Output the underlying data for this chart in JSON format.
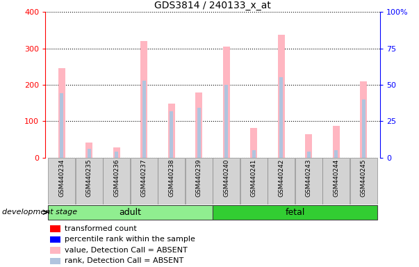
{
  "title": "GDS3814 / 240133_x_at",
  "samples": [
    "GSM440234",
    "GSM440235",
    "GSM440236",
    "GSM440237",
    "GSM440238",
    "GSM440239",
    "GSM440240",
    "GSM440241",
    "GSM440242",
    "GSM440243",
    "GSM440244",
    "GSM440245"
  ],
  "value_absent": [
    245,
    42,
    28,
    320,
    148,
    178,
    305,
    82,
    338,
    65,
    88,
    210
  ],
  "rank_absent": [
    44,
    6,
    4,
    53,
    32,
    34,
    50,
    5,
    55,
    4,
    5,
    40
  ],
  "groups": [
    "adult",
    "adult",
    "adult",
    "adult",
    "adult",
    "adult",
    "fetal",
    "fetal",
    "fetal",
    "fetal",
    "fetal",
    "fetal"
  ],
  "adult_color": "#90EE90",
  "fetal_color": "#32CD32",
  "ylim_left": [
    0,
    400
  ],
  "ylim_right": [
    0,
    100
  ],
  "yticks_left": [
    0,
    100,
    200,
    300,
    400
  ],
  "yticks_right": [
    0,
    25,
    50,
    75,
    100
  ],
  "bar_color_absent_value": "#FFB6C1",
  "bar_color_absent_rank": "#B0C4DE",
  "left_tick_color": "#FF0000",
  "right_tick_color": "#0000FF",
  "legend_items": [
    {
      "label": "transformed count",
      "color": "#FF0000"
    },
    {
      "label": "percentile rank within the sample",
      "color": "#0000FF"
    },
    {
      "label": "value, Detection Call = ABSENT",
      "color": "#FFB6C1"
    },
    {
      "label": "rank, Detection Call = ABSENT",
      "color": "#B0C4DE"
    }
  ],
  "development_stage_label": "development stage"
}
